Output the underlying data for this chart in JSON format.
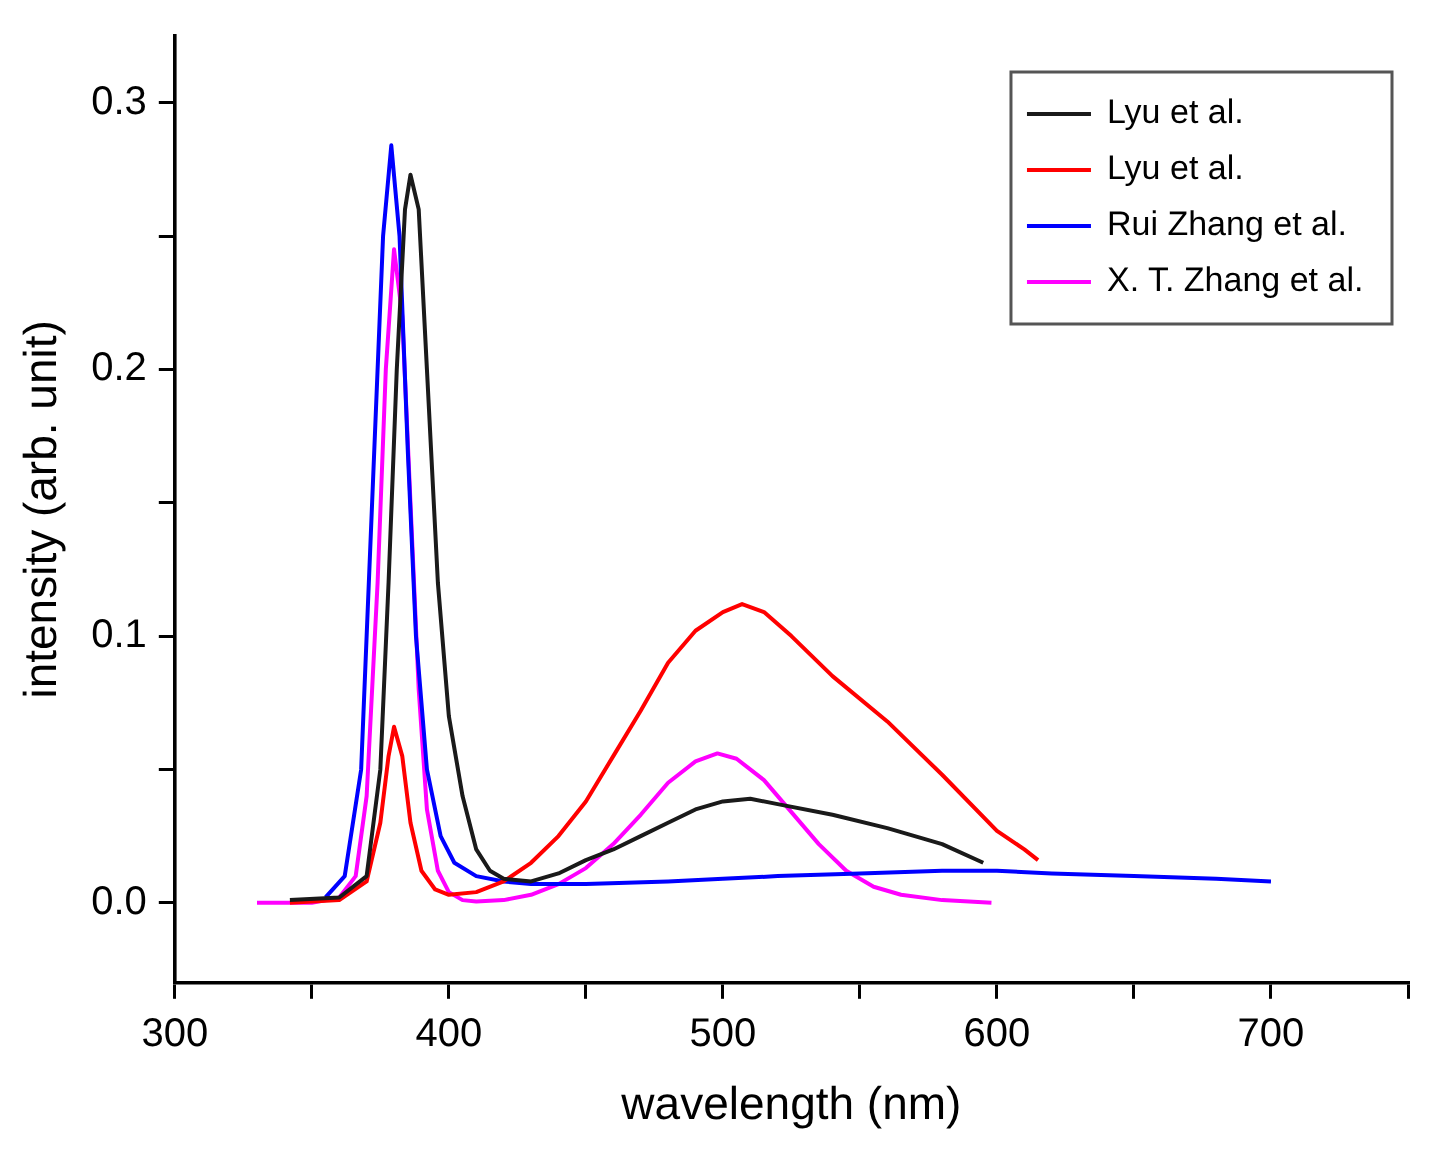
{
  "chart_data": {
    "type": "line",
    "xlabel": "wavelength (nm)",
    "ylabel": "intensity (arb. unit)",
    "xlim": [
      300,
      750
    ],
    "ylim": [
      -0.03,
      0.325
    ],
    "xticks": [
      300,
      {
        "value": 350,
        "label": null
      },
      400,
      {
        "value": 450,
        "label": null
      },
      500,
      {
        "value": 550,
        "label": null
      },
      600,
      {
        "value": 650,
        "label": null
      },
      700,
      {
        "value": 750,
        "label": null
      }
    ],
    "yticks": [
      {
        "value": 0,
        "label": "0.0"
      },
      {
        "value": 0.05,
        "label": null
      },
      {
        "value": 0.1,
        "label": "0.1"
      },
      {
        "value": 0.15,
        "label": null
      },
      {
        "value": 0.2,
        "label": "0.2"
      },
      {
        "value": 0.25,
        "label": null
      },
      {
        "value": 0.3,
        "label": "0.3"
      }
    ],
    "grid": false,
    "legend": "top right",
    "marker": "none",
    "line_style": "solid",
    "series": [
      {
        "name": "Lyu et al.",
        "color": "#1a1a1a",
        "x": [
          342,
          360,
          370,
          375,
          378,
          381,
          384,
          386,
          389,
          392,
          396,
          400,
          405,
          410,
          415,
          420,
          430,
          440,
          450,
          460,
          470,
          480,
          490,
          500,
          510,
          520,
          540,
          560,
          580,
          595
        ],
        "values": [
          0.001,
          0.002,
          0.01,
          0.05,
          0.12,
          0.2,
          0.26,
          0.273,
          0.26,
          0.2,
          0.12,
          0.07,
          0.04,
          0.02,
          0.012,
          0.009,
          0.008,
          0.011,
          0.016,
          0.02,
          0.025,
          0.03,
          0.035,
          0.038,
          0.039,
          0.037,
          0.033,
          0.028,
          0.022,
          0.015
        ]
      },
      {
        "name": "Lyu et al.",
        "color": "#ff0000",
        "x": [
          342,
          360,
          370,
          375,
          378,
          380,
          383,
          386,
          390,
          395,
          400,
          410,
          420,
          430,
          440,
          450,
          460,
          470,
          480,
          490,
          500,
          507,
          515,
          525,
          540,
          560,
          580,
          600,
          610,
          615
        ],
        "values": [
          0,
          0.001,
          0.008,
          0.03,
          0.055,
          0.066,
          0.055,
          0.03,
          0.012,
          0.005,
          0.003,
          0.004,
          0.008,
          0.015,
          0.025,
          0.038,
          0.055,
          0.072,
          0.09,
          0.102,
          0.109,
          0.112,
          0.109,
          0.1,
          0.085,
          0.068,
          0.048,
          0.027,
          0.02,
          0.016
        ]
      },
      {
        "name": "Rui Zhang et al.",
        "color": "#0000ff",
        "x": [
          355,
          362,
          368,
          372,
          376,
          379,
          382,
          385,
          388,
          392,
          397,
          402,
          410,
          420,
          430,
          450,
          480,
          500,
          520,
          550,
          580,
          600,
          620,
          650,
          680,
          700
        ],
        "values": [
          0.002,
          0.01,
          0.05,
          0.15,
          0.25,
          0.284,
          0.25,
          0.17,
          0.1,
          0.05,
          0.025,
          0.015,
          0.01,
          0.008,
          0.007,
          0.007,
          0.008,
          0.009,
          0.01,
          0.011,
          0.012,
          0.012,
          0.011,
          0.01,
          0.009,
          0.008
        ]
      },
      {
        "name": "X. T. Zhang et al.",
        "color": "#ff00ff",
        "x": [
          330,
          350,
          360,
          366,
          370,
          374,
          377,
          380,
          383,
          386,
          389,
          392,
          396,
          400,
          405,
          410,
          420,
          430,
          440,
          450,
          460,
          470,
          480,
          490,
          498,
          505,
          515,
          525,
          535,
          545,
          555,
          565,
          580,
          598
        ],
        "values": [
          0,
          0,
          0.002,
          0.01,
          0.04,
          0.12,
          0.2,
          0.245,
          0.22,
          0.15,
          0.08,
          0.035,
          0.012,
          0.004,
          0.001,
          0.0005,
          0.001,
          0.003,
          0.007,
          0.013,
          0.022,
          0.033,
          0.045,
          0.053,
          0.056,
          0.054,
          0.046,
          0.034,
          0.022,
          0.012,
          0.006,
          0.003,
          0.001,
          0
        ]
      }
    ]
  }
}
